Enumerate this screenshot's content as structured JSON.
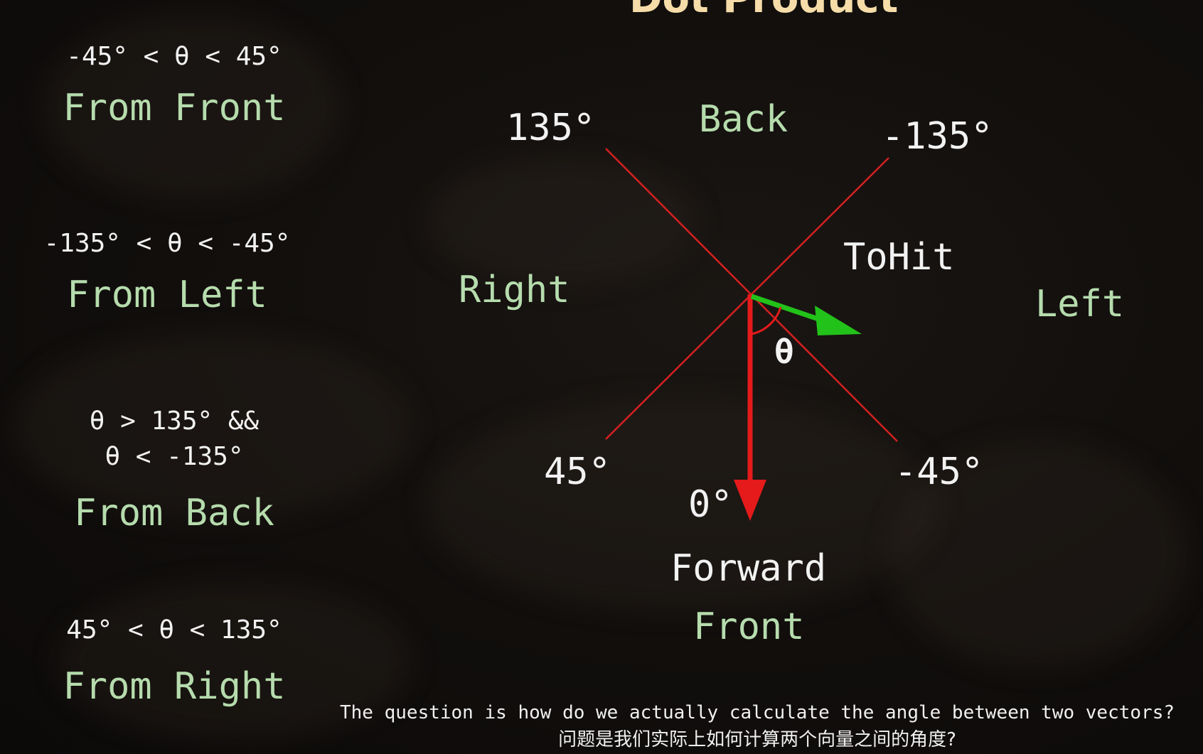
{
  "title": "Dot Product",
  "conditions": [
    {
      "range": "-45° < θ < 45°",
      "label": "From Front"
    },
    {
      "range": "-135° < θ < -45°",
      "label": "From Left"
    },
    {
      "range": "θ > 135° &&\nθ < -135°",
      "label": "From Back"
    },
    {
      "range": "45° < θ < 135°",
      "label": "From Right"
    }
  ],
  "diagram": {
    "angle_135": "135°",
    "angle_neg135": "-135°",
    "angle_45": "45°",
    "angle_neg45": "-45°",
    "angle_0": "0°",
    "theta": "θ",
    "back": "Back",
    "right": "Right",
    "left": "Left",
    "front": "Front",
    "forward": "Forward",
    "tohit": "ToHit",
    "colors": {
      "diagonal_lines": "#d42020",
      "forward_vector": "#e51a1a",
      "tohit_vector": "#22c21a",
      "theta_arc": "#e51a1a"
    }
  },
  "subtitle": {
    "english": "The question is how do we actually calculate the angle between two vectors?",
    "chinese": "问题是我们实际上如何计算两个向量之间的角度?"
  }
}
